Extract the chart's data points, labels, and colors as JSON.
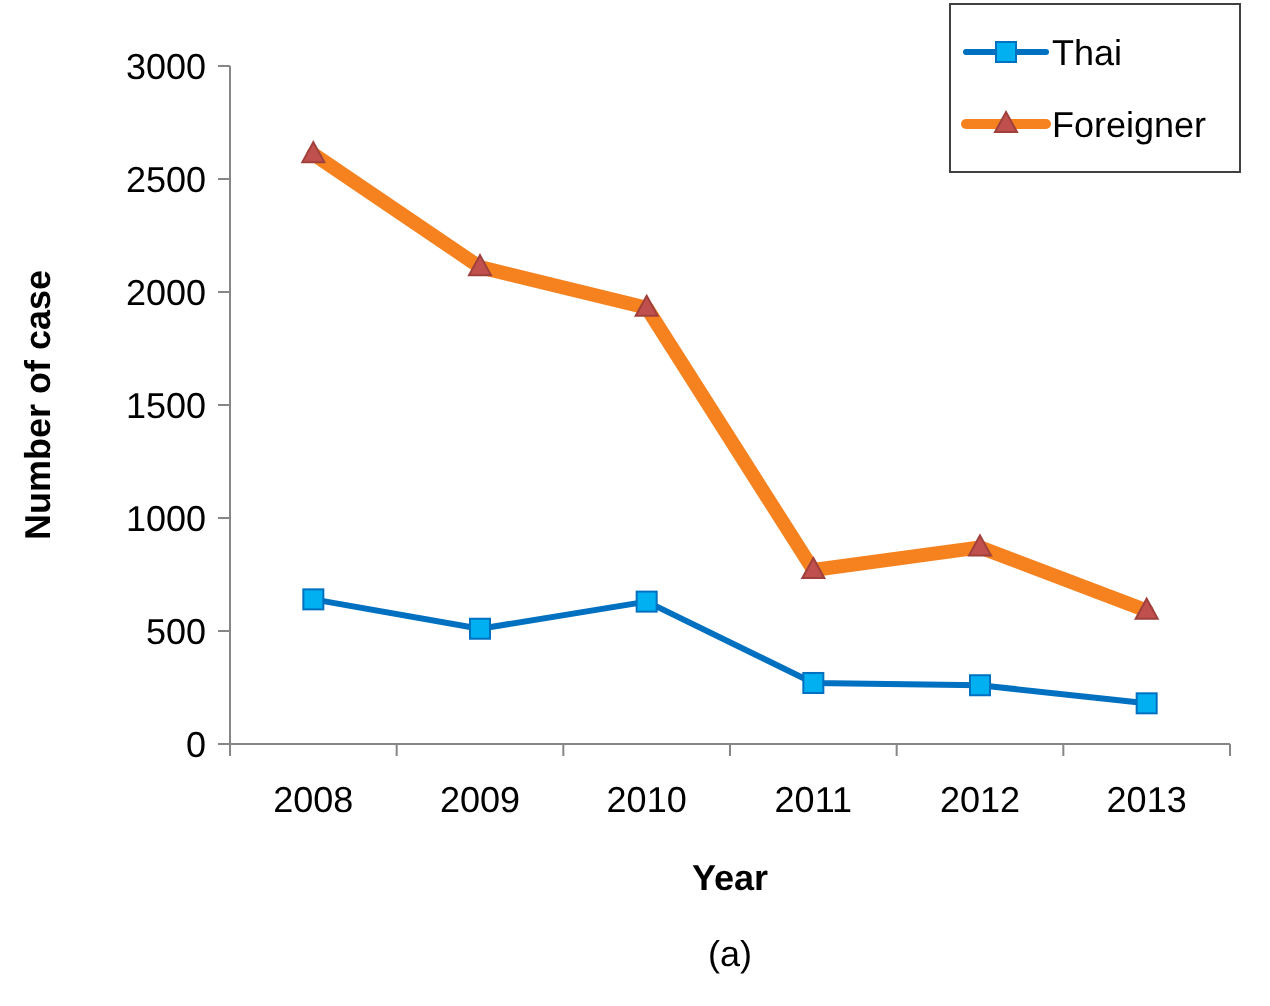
{
  "chart_data": {
    "type": "line",
    "xlabel": "Year",
    "ylabel": "Number of case",
    "annotations": [
      "(a)"
    ],
    "categories": [
      "2008",
      "2009",
      "2010",
      "2011",
      "2012",
      "2013"
    ],
    "series": [
      {
        "name": "Thai",
        "color": "#0070c0",
        "values": [
          640,
          510,
          630,
          270,
          260,
          180
        ],
        "marker": "square"
      },
      {
        "name": "Foreigner",
        "color": "#f5821f",
        "values": [
          2610,
          2110,
          1930,
          770,
          870,
          590
        ],
        "marker": "triangle"
      }
    ],
    "ylim": [
      0,
      3000
    ],
    "yticks": [
      0,
      500,
      1000,
      1500,
      2000,
      2500,
      3000
    ],
    "grid": false,
    "legend": "top right"
  }
}
